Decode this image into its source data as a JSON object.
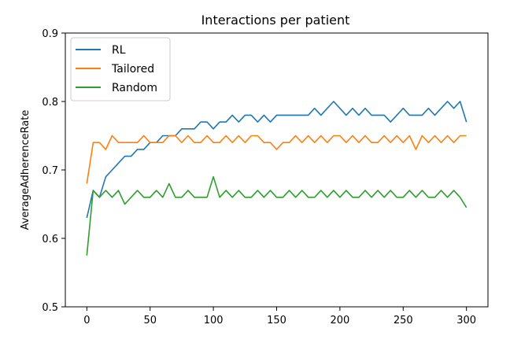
{
  "chart_data": {
    "type": "line",
    "title": "Interactions per patient",
    "xlabel": "",
    "ylabel": "AverageAdherenceRate",
    "xlim": [
      -17,
      317
    ],
    "ylim": [
      0.5,
      0.9
    ],
    "xticks": [
      0,
      50,
      100,
      150,
      200,
      250,
      300
    ],
    "yticks": [
      0.5,
      0.6,
      0.7,
      0.8,
      0.9
    ],
    "xtick_labels": [
      "0",
      "50",
      "100",
      "150",
      "200",
      "250",
      "300"
    ],
    "ytick_labels": [
      "0.5",
      "0.6",
      "0.7",
      "0.8",
      "0.9"
    ],
    "grid": false,
    "legend_position": "upper-left",
    "series": [
      {
        "name": "RL",
        "color": "#1f77b4",
        "x": [
          0,
          5,
          10,
          15,
          20,
          25,
          30,
          35,
          40,
          45,
          50,
          55,
          60,
          65,
          70,
          75,
          80,
          85,
          90,
          95,
          100,
          105,
          110,
          115,
          120,
          125,
          130,
          135,
          140,
          145,
          150,
          155,
          160,
          165,
          170,
          175,
          180,
          185,
          190,
          195,
          200,
          205,
          210,
          215,
          220,
          225,
          230,
          235,
          240,
          245,
          250,
          255,
          260,
          265,
          270,
          275,
          280,
          285,
          290,
          295,
          300
        ],
        "values": [
          0.63,
          0.67,
          0.66,
          0.69,
          0.7,
          0.71,
          0.72,
          0.72,
          0.73,
          0.73,
          0.74,
          0.74,
          0.75,
          0.75,
          0.75,
          0.76,
          0.76,
          0.76,
          0.77,
          0.77,
          0.76,
          0.77,
          0.77,
          0.78,
          0.77,
          0.78,
          0.78,
          0.77,
          0.78,
          0.77,
          0.78,
          0.78,
          0.78,
          0.78,
          0.78,
          0.78,
          0.79,
          0.78,
          0.79,
          0.8,
          0.79,
          0.78,
          0.79,
          0.78,
          0.79,
          0.78,
          0.78,
          0.78,
          0.77,
          0.78,
          0.79,
          0.78,
          0.78,
          0.78,
          0.79,
          0.78,
          0.79,
          0.8,
          0.79,
          0.8,
          0.77
        ]
      },
      {
        "name": "Tailored",
        "color": "#ff7f0e",
        "x": [
          0,
          5,
          10,
          15,
          20,
          25,
          30,
          35,
          40,
          45,
          50,
          55,
          60,
          65,
          70,
          75,
          80,
          85,
          90,
          95,
          100,
          105,
          110,
          115,
          120,
          125,
          130,
          135,
          140,
          145,
          150,
          155,
          160,
          165,
          170,
          175,
          180,
          185,
          190,
          195,
          200,
          205,
          210,
          215,
          220,
          225,
          230,
          235,
          240,
          245,
          250,
          255,
          260,
          265,
          270,
          275,
          280,
          285,
          290,
          295,
          300
        ],
        "values": [
          0.68,
          0.74,
          0.74,
          0.73,
          0.75,
          0.74,
          0.74,
          0.74,
          0.74,
          0.75,
          0.74,
          0.74,
          0.74,
          0.75,
          0.75,
          0.74,
          0.75,
          0.74,
          0.74,
          0.75,
          0.74,
          0.74,
          0.75,
          0.74,
          0.75,
          0.74,
          0.75,
          0.75,
          0.74,
          0.74,
          0.73,
          0.74,
          0.74,
          0.75,
          0.74,
          0.75,
          0.74,
          0.75,
          0.74,
          0.75,
          0.75,
          0.74,
          0.75,
          0.74,
          0.75,
          0.74,
          0.74,
          0.75,
          0.74,
          0.75,
          0.74,
          0.75,
          0.73,
          0.75,
          0.74,
          0.75,
          0.74,
          0.75,
          0.74,
          0.75,
          0.75
        ]
      },
      {
        "name": "Random",
        "color": "#2ca02c",
        "x": [
          0,
          5,
          10,
          15,
          20,
          25,
          30,
          35,
          40,
          45,
          50,
          55,
          60,
          65,
          70,
          75,
          80,
          85,
          90,
          95,
          100,
          105,
          110,
          115,
          120,
          125,
          130,
          135,
          140,
          145,
          150,
          155,
          160,
          165,
          170,
          175,
          180,
          185,
          190,
          195,
          200,
          205,
          210,
          215,
          220,
          225,
          230,
          235,
          240,
          245,
          250,
          255,
          260,
          265,
          270,
          275,
          280,
          285,
          290,
          295,
          300
        ],
        "values": [
          0.575,
          0.67,
          0.66,
          0.67,
          0.66,
          0.67,
          0.65,
          0.66,
          0.67,
          0.66,
          0.66,
          0.67,
          0.66,
          0.68,
          0.66,
          0.66,
          0.67,
          0.66,
          0.66,
          0.66,
          0.69,
          0.66,
          0.67,
          0.66,
          0.67,
          0.66,
          0.66,
          0.67,
          0.66,
          0.67,
          0.66,
          0.66,
          0.67,
          0.66,
          0.67,
          0.66,
          0.66,
          0.67,
          0.66,
          0.67,
          0.66,
          0.67,
          0.66,
          0.66,
          0.67,
          0.66,
          0.67,
          0.66,
          0.67,
          0.66,
          0.66,
          0.67,
          0.66,
          0.67,
          0.66,
          0.66,
          0.67,
          0.66,
          0.67,
          0.66,
          0.645
        ]
      }
    ]
  }
}
